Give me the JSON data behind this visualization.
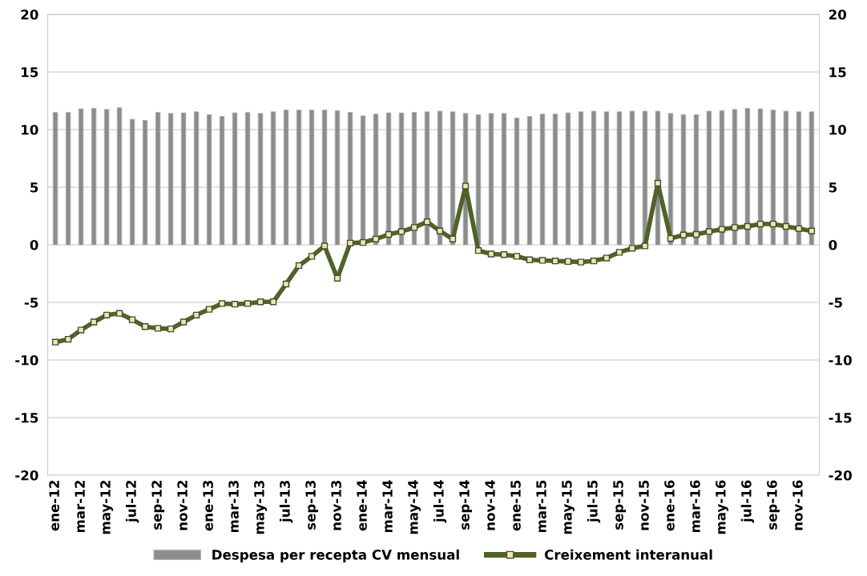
{
  "chart_data": {
    "type": "bar",
    "categories": [
      "ene-12",
      null,
      "mar-12",
      null,
      "may-12",
      null,
      "jul-12",
      null,
      "sep-12",
      null,
      "nov-12",
      null,
      "ene-13",
      null,
      "mar-13",
      null,
      "may-13",
      null,
      "jul-13",
      null,
      "sep-13",
      null,
      "nov-13",
      null,
      "ene-14",
      null,
      "mar-14",
      null,
      "may-14",
      null,
      "jul-14",
      null,
      "sep-14",
      null,
      "nov-14",
      null,
      "ene-15",
      null,
      "mar-15",
      null,
      "may-15",
      null,
      "jul-15",
      null,
      "sep-15",
      null,
      "nov-15",
      null,
      "ene-16",
      null,
      "mar-16",
      null,
      "may-16",
      null,
      "jul-16",
      null,
      "sep-16",
      null,
      "nov-16",
      null
    ],
    "series": [
      {
        "name": "Despesa per recepta CV mensual",
        "color": "#8c8c8c",
        "values": [
          11.5,
          11.5,
          11.8,
          11.85,
          11.75,
          11.9,
          10.9,
          10.8,
          11.5,
          11.4,
          11.45,
          11.55,
          11.3,
          11.15,
          11.45,
          11.5,
          11.4,
          11.55,
          11.7,
          11.7,
          11.7,
          11.7,
          11.65,
          11.5,
          11.2,
          11.35,
          11.45,
          11.45,
          11.5,
          11.55,
          11.6,
          11.55,
          11.4,
          11.3,
          11.4,
          11.4,
          11.0,
          11.15,
          11.35,
          11.35,
          11.45,
          11.55,
          11.6,
          11.55,
          11.55,
          11.6,
          11.6,
          11.6,
          11.4,
          11.3,
          11.3,
          11.6,
          11.65,
          11.75,
          11.85,
          11.8,
          11.7,
          11.6,
          11.55,
          11.55
        ]
      },
      {
        "name": "Creixement interanual",
        "type": "line",
        "axis": "y2",
        "color": "#4f6228",
        "marker": "square",
        "values": [
          -8.45,
          -8.2,
          -7.4,
          -6.7,
          -6.1,
          -5.95,
          -6.5,
          -7.1,
          -7.25,
          -7.3,
          -6.7,
          -6.1,
          -5.6,
          -5.1,
          -5.15,
          -5.1,
          -4.95,
          -4.95,
          -3.4,
          -1.8,
          -1.0,
          -0.1,
          -2.9,
          0.15,
          0.2,
          0.5,
          0.9,
          1.15,
          1.5,
          2.0,
          1.2,
          0.5,
          5.1,
          -0.5,
          -0.8,
          -0.85,
          -1.0,
          -1.3,
          -1.35,
          -1.4,
          -1.45,
          -1.5,
          -1.4,
          -1.15,
          -0.65,
          -0.3,
          -0.1,
          5.35,
          0.55,
          0.85,
          0.9,
          1.15,
          1.35,
          1.5,
          1.6,
          1.8,
          1.8,
          1.6,
          1.4,
          1.2
        ]
      }
    ],
    "ylim": [
      -20,
      20
    ],
    "yticks": [
      -20,
      -15,
      -10,
      -5,
      0,
      5,
      10,
      15,
      20
    ],
    "y2lim": [
      -20,
      20
    ],
    "y2ticks": [
      -20,
      -15,
      -10,
      -5,
      0,
      5,
      10,
      15,
      20
    ],
    "grid": "y",
    "legend": "bottom"
  }
}
